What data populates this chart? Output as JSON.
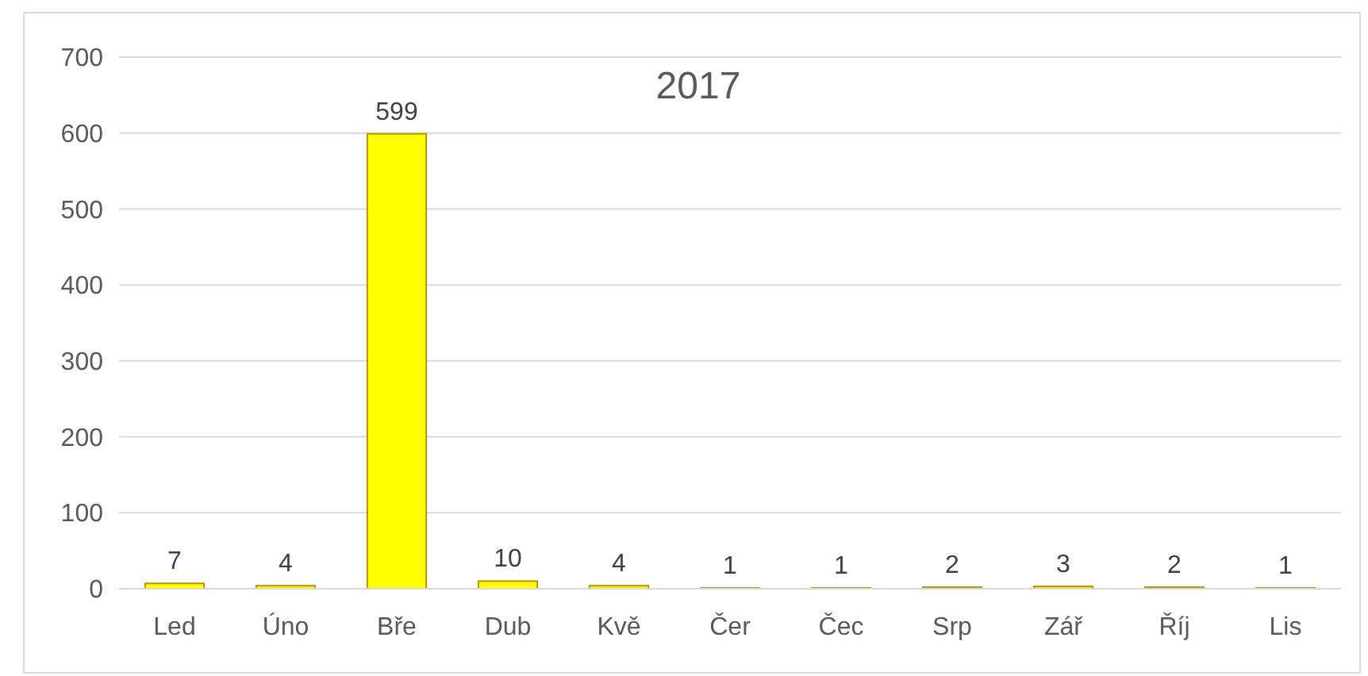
{
  "chart_data": {
    "type": "bar",
    "title": "2017",
    "categories": [
      "Led",
      "Úno",
      "Bře",
      "Dub",
      "Kvě",
      "Čer",
      "Čec",
      "Srp",
      "Zář",
      "Říj",
      "Lis"
    ],
    "values": [
      7,
      4,
      599,
      10,
      4,
      1,
      1,
      2,
      3,
      2,
      1
    ],
    "color": "#ffff00",
    "ylim": [
      0,
      700
    ],
    "yticks": [
      0,
      100,
      200,
      300,
      400,
      500,
      600,
      700
    ],
    "grid": "y",
    "data_labels": true
  }
}
